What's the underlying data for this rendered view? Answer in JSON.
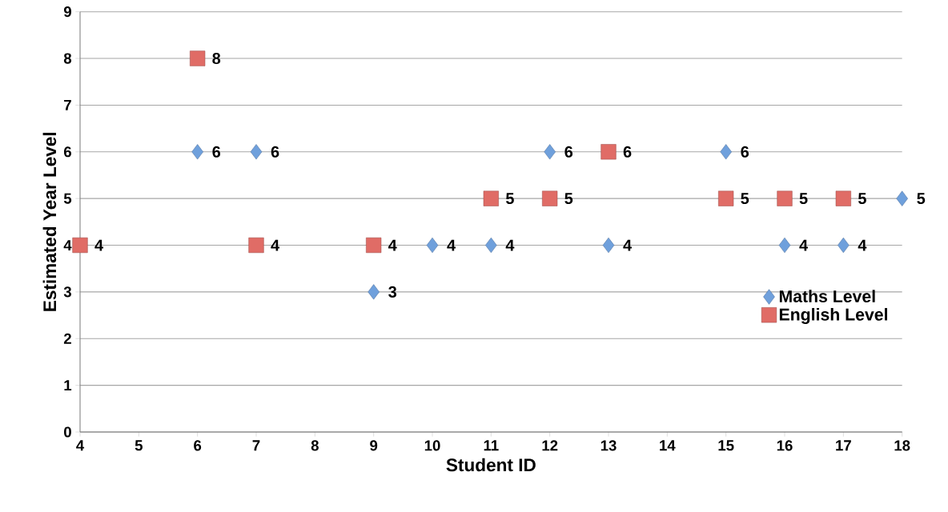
{
  "chart_data": {
    "type": "scatter",
    "xlabel": "Student ID",
    "ylabel": "Estimated Year Level",
    "xlim": [
      4,
      18
    ],
    "xticks": [
      4,
      5,
      6,
      7,
      8,
      9,
      10,
      11,
      12,
      13,
      14,
      15,
      16,
      17,
      18
    ],
    "ylim": [
      0,
      9
    ],
    "yticks": [
      0,
      1,
      2,
      3,
      4,
      5,
      6,
      7,
      8,
      9
    ],
    "grid": "y",
    "legend": "right",
    "data_labels": true,
    "series": [
      {
        "name": "Maths Level",
        "color": "#6fa0dc",
        "marker": "diamond",
        "x": [
          6,
          7,
          9,
          10,
          11,
          12,
          13,
          15,
          16,
          17,
          18
        ],
        "values": [
          6,
          6,
          3,
          4,
          4,
          6,
          4,
          6,
          4,
          4,
          5
        ]
      },
      {
        "name": "English Level",
        "color": "#e06c66",
        "marker": "square",
        "x": [
          4,
          6,
          7,
          9,
          11,
          12,
          13,
          15,
          16,
          17
        ],
        "values": [
          4,
          8,
          4,
          4,
          5,
          5,
          6,
          5,
          5,
          5
        ]
      }
    ]
  }
}
